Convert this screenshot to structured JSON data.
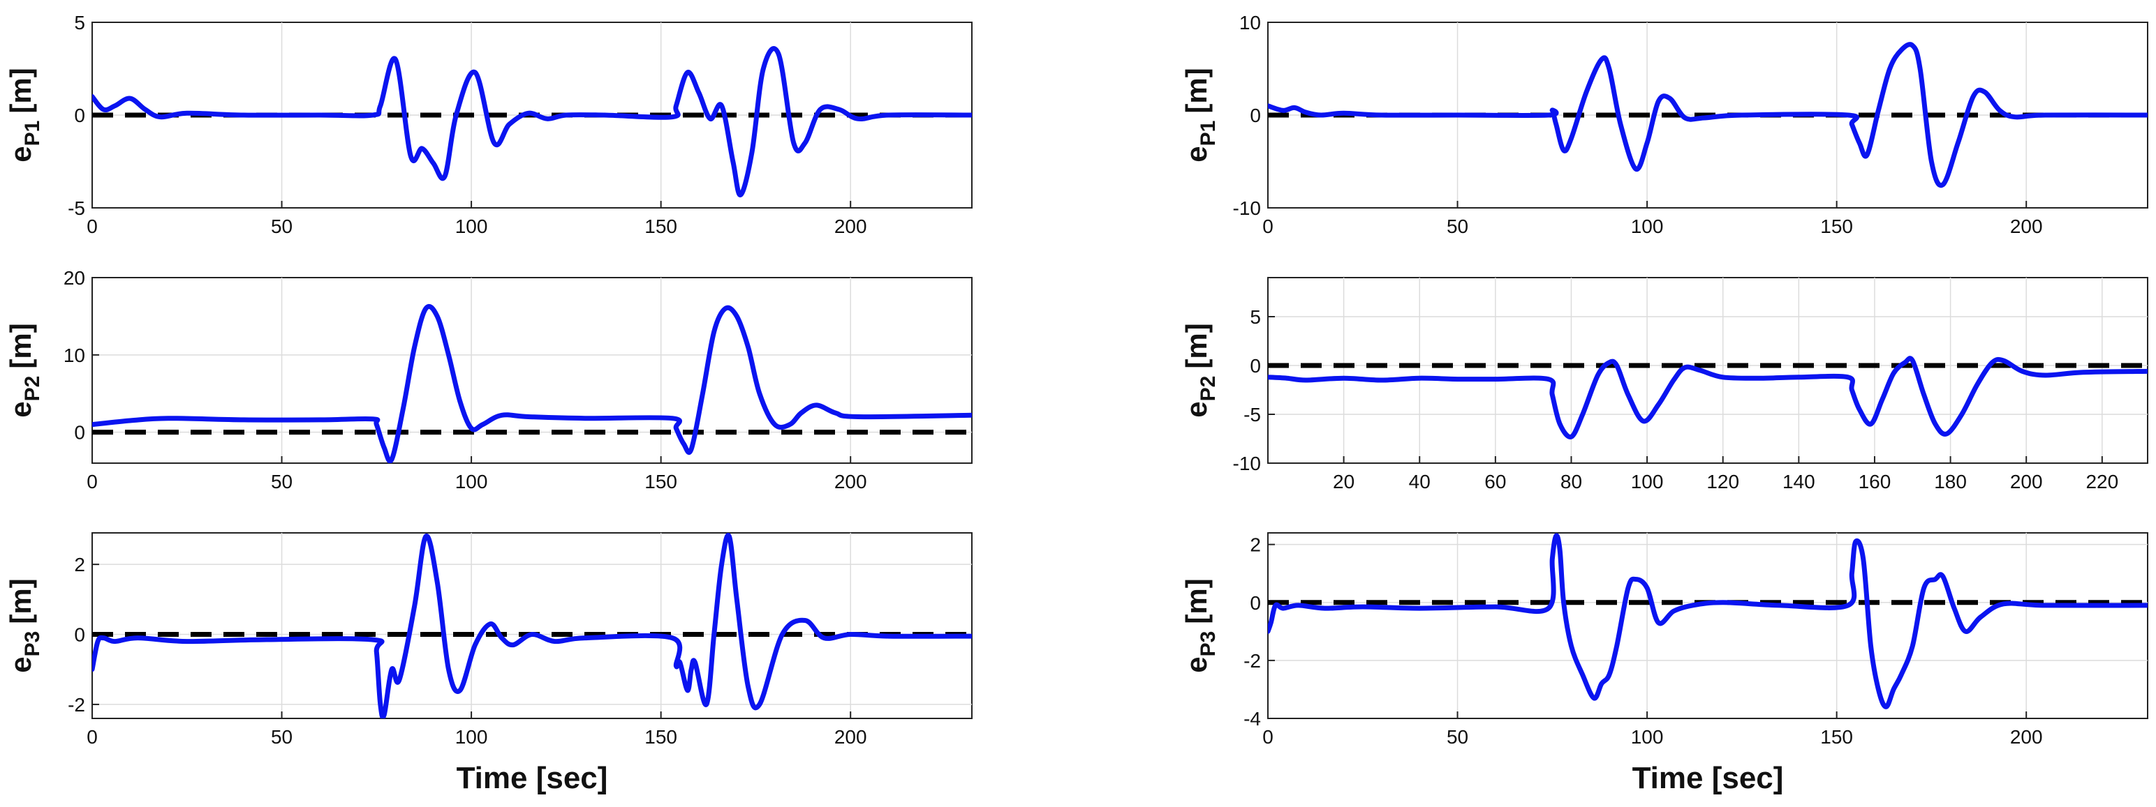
{
  "colors": {
    "signal": "#0a14f0",
    "reference": "#000000",
    "grid": "#dcdcdc"
  },
  "chart_data": [
    {
      "id": "left-1",
      "type": "line",
      "ylabel_main": "e",
      "ylabel_sub": "P1",
      "ylabel_unit": "[m]",
      "xlim": [
        0,
        232
      ],
      "ylim": [
        -5,
        5
      ],
      "xticks": [
        0,
        50,
        100,
        150,
        200
      ],
      "yticks": [
        -5,
        0,
        5
      ],
      "grid": true,
      "reference": 0,
      "series": [
        {
          "x": [
            0,
            3,
            6,
            10,
            14,
            18,
            25,
            40,
            60,
            74,
            76,
            80,
            84,
            87,
            90,
            93,
            96,
            101,
            106,
            110,
            115,
            120,
            125,
            135,
            153,
            154,
            157,
            160,
            163,
            166,
            169,
            171,
            174,
            177,
            181,
            185,
            188,
            192,
            197,
            202,
            210,
            232
          ],
          "y": [
            1.0,
            0.3,
            0.5,
            0.9,
            0.3,
            -0.1,
            0.1,
            0.0,
            0.0,
            0.0,
            0.5,
            3.0,
            -2.2,
            -1.8,
            -2.6,
            -3.3,
            0.0,
            2.3,
            -1.5,
            -0.5,
            0.1,
            -0.2,
            0.0,
            0.0,
            -0.1,
            0.5,
            2.3,
            1.2,
            -0.2,
            0.5,
            -2.5,
            -4.3,
            -2.0,
            2.5,
            3.3,
            -1.5,
            -1.5,
            0.3,
            0.3,
            -0.2,
            0.0,
            0.0
          ]
        }
      ]
    },
    {
      "id": "left-2",
      "type": "line",
      "ylabel_main": "e",
      "ylabel_sub": "P2",
      "ylabel_unit": "[m]",
      "xlim": [
        0,
        232
      ],
      "ylim": [
        -4,
        20
      ],
      "xticks": [
        0,
        50,
        100,
        150,
        200
      ],
      "yticks": [
        0,
        10,
        20
      ],
      "grid": true,
      "reference": 0,
      "series": [
        {
          "x": [
            0,
            10,
            20,
            40,
            60,
            74,
            75,
            77,
            79,
            82,
            85,
            88,
            91,
            94,
            97,
            100,
            103,
            108,
            115,
            130,
            153,
            154,
            156,
            158,
            161,
            164,
            167,
            170,
            173,
            176,
            180,
            184,
            187,
            191,
            196,
            202,
            232
          ],
          "y": [
            1.0,
            1.5,
            1.8,
            1.6,
            1.6,
            1.7,
            1.0,
            -2.0,
            -3.5,
            3.0,
            11.0,
            16.0,
            15.0,
            10.0,
            4.0,
            0.5,
            1.0,
            2.2,
            2.0,
            1.8,
            1.8,
            0.5,
            -1.5,
            -2.2,
            5.0,
            13.0,
            16.0,
            15.0,
            11.0,
            5.0,
            1.0,
            1.0,
            2.5,
            3.5,
            2.5,
            2.0,
            2.2
          ]
        }
      ]
    },
    {
      "id": "left-3",
      "type": "line",
      "ylabel_main": "e",
      "ylabel_sub": "P3",
      "ylabel_unit": "[m]",
      "xlim": [
        0,
        232
      ],
      "ylim": [
        -2.4,
        2.9
      ],
      "xticks": [
        0,
        50,
        100,
        150,
        200
      ],
      "yticks": [
        -2,
        0,
        2
      ],
      "grid": true,
      "reference": 0,
      "series": [
        {
          "x": [
            0,
            1.5,
            3,
            6,
            12,
            25,
            45,
            74,
            75,
            76,
            77,
            79,
            81,
            85,
            88,
            91,
            94,
            97,
            101,
            105,
            108,
            111,
            116,
            122,
            130,
            153,
            154,
            155,
            157,
            158,
            159,
            162,
            164,
            166,
            168,
            170,
            173,
            176,
            182,
            188,
            193,
            200,
            210,
            232
          ],
          "y": [
            -1.0,
            -0.2,
            -0.1,
            -0.2,
            -0.1,
            -0.2,
            -0.15,
            -0.15,
            -0.5,
            -2.0,
            -2.3,
            -1.0,
            -1.3,
            0.8,
            2.8,
            1.5,
            -1.0,
            -1.6,
            -0.3,
            0.3,
            -0.1,
            -0.3,
            0.0,
            -0.2,
            -0.1,
            -0.1,
            -0.9,
            -0.8,
            -1.6,
            -1.0,
            -0.8,
            -2.0,
            0.0,
            2.0,
            2.8,
            1.0,
            -1.5,
            -2.0,
            0.0,
            0.4,
            -0.1,
            0.0,
            -0.05,
            -0.05
          ]
        }
      ]
    },
    {
      "id": "right-1",
      "type": "line",
      "ylabel_main": "e",
      "ylabel_sub": "P1",
      "ylabel_unit": "[m]",
      "xlim": [
        0,
        232
      ],
      "ylim": [
        -10,
        10
      ],
      "xticks": [
        0,
        50,
        100,
        150,
        200
      ],
      "yticks": [
        -10,
        0,
        10
      ],
      "grid": true,
      "reference": 0,
      "series": [
        {
          "x": [
            0,
            4,
            7,
            10,
            14,
            20,
            30,
            50,
            74,
            75,
            76,
            78,
            80,
            84,
            88,
            90,
            93,
            97,
            100,
            103,
            106,
            110,
            115,
            125,
            153,
            154,
            156,
            158,
            161,
            164,
            167,
            170,
            172,
            175,
            178,
            182,
            186,
            189,
            193,
            197,
            205,
            232
          ],
          "y": [
            1.0,
            0.5,
            0.8,
            0.3,
            0.0,
            0.2,
            0.0,
            0.0,
            0.0,
            0.5,
            -1.0,
            -3.8,
            -2.5,
            2.5,
            6.0,
            5.0,
            -1.0,
            -5.8,
            -3.0,
            1.5,
            1.8,
            -0.3,
            -0.3,
            0.0,
            0.0,
            -1.0,
            -3.0,
            -4.3,
            0.5,
            5.0,
            7.0,
            7.5,
            5.0,
            -5.0,
            -7.5,
            -3.0,
            2.0,
            2.5,
            0.5,
            -0.2,
            0.0,
            0.0
          ]
        }
      ]
    },
    {
      "id": "right-2",
      "type": "line",
      "ylabel_main": "e",
      "ylabel_sub": "P2",
      "ylabel_unit": "[m]",
      "xlim": [
        0,
        232
      ],
      "ylim": [
        -10,
        9
      ],
      "xticks": [
        20,
        40,
        60,
        80,
        100,
        120,
        140,
        160,
        180,
        200,
        220
      ],
      "yticks": [
        -10,
        -5,
        0,
        5
      ],
      "grid": true,
      "reference": 0,
      "series": [
        {
          "x": [
            0,
            5,
            10,
            20,
            30,
            40,
            50,
            60,
            74,
            75,
            77,
            80,
            83,
            87,
            90,
            92,
            95,
            99,
            103,
            107,
            110,
            114,
            120,
            130,
            140,
            153,
            154,
            156,
            159,
            162,
            165,
            168,
            170,
            173,
            176,
            179,
            183,
            187,
            191,
            194,
            199,
            205,
            215,
            232
          ],
          "y": [
            -1.2,
            -1.3,
            -1.5,
            -1.3,
            -1.5,
            -1.3,
            -1.4,
            -1.4,
            -1.4,
            -3.0,
            -6.0,
            -7.3,
            -5.0,
            -1.0,
            0.3,
            0.0,
            -3.0,
            -5.7,
            -4.0,
            -1.5,
            -0.2,
            -0.5,
            -1.2,
            -1.3,
            -1.2,
            -1.2,
            -2.5,
            -4.5,
            -6.0,
            -3.5,
            -0.8,
            0.3,
            0.5,
            -3.0,
            -6.0,
            -7.0,
            -5.0,
            -2.0,
            0.3,
            0.5,
            -0.6,
            -1.0,
            -0.7,
            -0.6
          ]
        }
      ]
    },
    {
      "id": "right-3",
      "type": "line",
      "ylabel_main": "e",
      "ylabel_sub": "P3",
      "ylabel_unit": "[m]",
      "xlim": [
        0,
        232
      ],
      "ylim": [
        -4,
        2.4
      ],
      "xticks": [
        0,
        50,
        100,
        150,
        200
      ],
      "yticks": [
        -4,
        -2,
        0,
        2
      ],
      "grid": true,
      "reference": 0,
      "series": [
        {
          "x": [
            0,
            0.8,
            2,
            4,
            8,
            15,
            25,
            40,
            60,
            74,
            75,
            76,
            77,
            78,
            80,
            83,
            86,
            88,
            90,
            92,
            95,
            97,
            100,
            103,
            107,
            112,
            120,
            135,
            153,
            154,
            155,
            157,
            159,
            161,
            163,
            165,
            167,
            170,
            173,
            176,
            178,
            181,
            184,
            188,
            194,
            205,
            232
          ],
          "y": [
            -1.0,
            -0.7,
            -0.1,
            -0.2,
            -0.1,
            -0.2,
            -0.15,
            -0.2,
            -0.15,
            -0.2,
            1.5,
            2.3,
            1.8,
            0.0,
            -1.5,
            -2.5,
            -3.3,
            -2.8,
            -2.5,
            -1.5,
            0.5,
            0.8,
            0.5,
            -0.7,
            -0.3,
            -0.1,
            0.0,
            -0.1,
            -0.1,
            1.0,
            2.1,
            1.5,
            -1.5,
            -3.0,
            -3.6,
            -3.0,
            -2.5,
            -1.5,
            0.5,
            0.8,
            0.9,
            -0.2,
            -1.0,
            -0.5,
            -0.05,
            -0.1,
            -0.1
          ]
        }
      ]
    }
  ],
  "xlabels": {
    "left": "Time [sec]",
    "right": "Time [sec]"
  }
}
